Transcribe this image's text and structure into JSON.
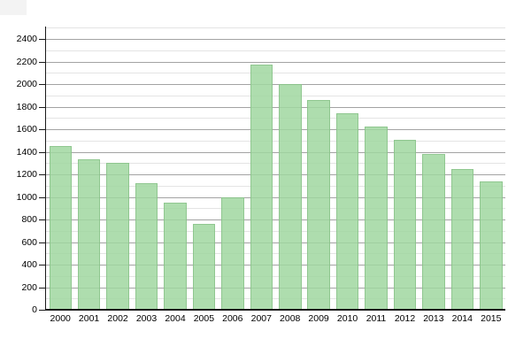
{
  "chart_data": {
    "type": "bar",
    "title": "",
    "xlabel": "",
    "ylabel": "",
    "categories": [
      "2000",
      "2001",
      "2002",
      "2003",
      "2004",
      "2005",
      "2006",
      "2007",
      "2008",
      "2009",
      "2010",
      "2011",
      "2012",
      "2013",
      "2014",
      "2015"
    ],
    "values": [
      1450,
      1330,
      1300,
      1120,
      950,
      760,
      1000,
      2170,
      2000,
      1860,
      1740,
      1620,
      1510,
      1380,
      1250,
      1140
    ],
    "ylim": [
      0,
      2500
    ],
    "y_major_step": 200,
    "y_minor_step": 100,
    "grid": "on",
    "legend": "none",
    "bar_color": "rgba(160,215,160,0.85)",
    "bar_border_color": "rgba(128,188,128,0.65)",
    "major_grid_color": "#a3a3a3",
    "minor_grid_color": "#e4e4e4",
    "axis_color": "#1a1a1a",
    "label_color": "#000000"
  }
}
